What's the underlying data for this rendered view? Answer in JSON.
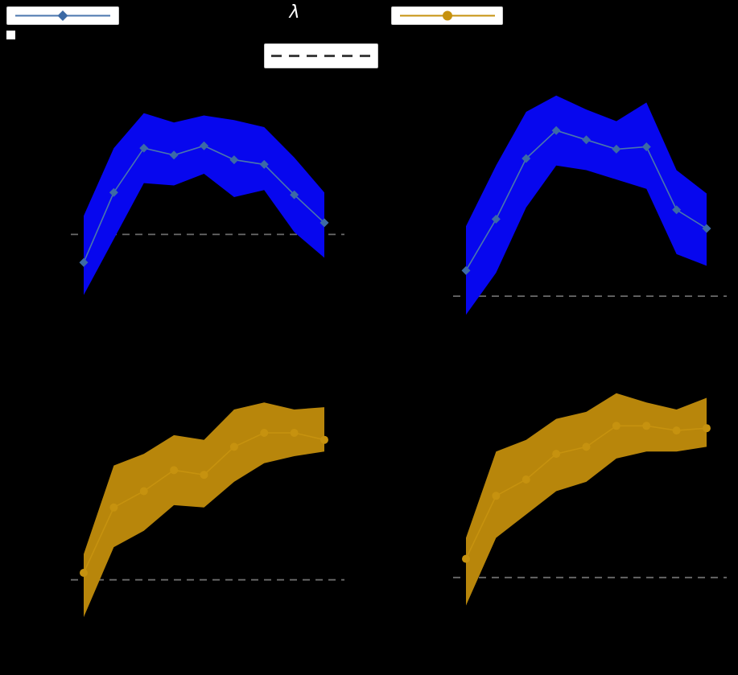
{
  "figure": {
    "background": "#000000",
    "lambda_label": "λ"
  },
  "legend": [
    {
      "id": "series-blue",
      "style": "solid",
      "marker": "diamond",
      "line_color": "#4a76ad",
      "marker_color": "#3c6aa5"
    },
    {
      "id": "series-dashed",
      "style": "dashed",
      "marker": "none",
      "line_color": "#3e3e3e",
      "marker_color": ""
    },
    {
      "id": "series-gold",
      "style": "solid",
      "marker": "circle",
      "line_color": "#c6920f",
      "marker_color": "#c6920f"
    }
  ],
  "chart_data": [
    {
      "id": "top-left",
      "type": "line",
      "x_label": "λ",
      "x": [
        1,
        2,
        3,
        4,
        5,
        6,
        7,
        8,
        9
      ],
      "line": [
        0.22,
        0.52,
        0.71,
        0.68,
        0.72,
        0.66,
        0.64,
        0.51,
        0.39
      ],
      "band_upper": [
        0.42,
        0.71,
        0.86,
        0.82,
        0.85,
        0.83,
        0.8,
        0.67,
        0.52
      ],
      "band_lower": [
        0.08,
        0.32,
        0.56,
        0.55,
        0.6,
        0.5,
        0.53,
        0.35,
        0.24
      ],
      "baseline": 0.34,
      "marker": "diamond",
      "band_color": "#0707ee",
      "line_color": "#4a76ad",
      "marker_color": "#3c6aa5",
      "baseline_color": "#6b6b6b",
      "ylim": [
        0,
        1
      ],
      "grid": false
    },
    {
      "id": "top-right",
      "type": "line",
      "x_label": "λ",
      "x": [
        1,
        2,
        3,
        4,
        5,
        6,
        7,
        8,
        9
      ],
      "line": [
        0.22,
        0.44,
        0.7,
        0.82,
        0.78,
        0.74,
        0.75,
        0.48,
        0.4
      ],
      "band_upper": [
        0.41,
        0.67,
        0.9,
        0.97,
        0.91,
        0.86,
        0.94,
        0.65,
        0.55
      ],
      "band_lower": [
        0.03,
        0.21,
        0.49,
        0.67,
        0.65,
        0.61,
        0.57,
        0.29,
        0.24
      ],
      "baseline": 0.11,
      "marker": "diamond",
      "band_color": "#0707ee",
      "line_color": "#4a76ad",
      "marker_color": "#3c6aa5",
      "baseline_color": "#6b6b6b",
      "ylim": [
        0,
        1
      ],
      "grid": false
    },
    {
      "id": "bottom-left",
      "type": "line",
      "x_label": "λ",
      "x": [
        1,
        2,
        3,
        4,
        5,
        6,
        7,
        8,
        9
      ],
      "line": [
        0.2,
        0.48,
        0.55,
        0.64,
        0.62,
        0.74,
        0.8,
        0.8,
        0.77
      ],
      "band_upper": [
        0.28,
        0.66,
        0.71,
        0.79,
        0.77,
        0.9,
        0.93,
        0.9,
        0.91
      ],
      "band_lower": [
        0.01,
        0.31,
        0.38,
        0.49,
        0.48,
        0.59,
        0.67,
        0.7,
        0.72
      ],
      "baseline": 0.17,
      "marker": "circle",
      "band_color": "#b8860b",
      "line_color": "#c6920f",
      "marker_color": "#c6920f",
      "baseline_color": "#6b6b6b",
      "ylim": [
        0,
        1
      ],
      "grid": false
    },
    {
      "id": "bottom-right",
      "type": "line",
      "x_label": "λ",
      "x": [
        1,
        2,
        3,
        4,
        5,
        6,
        7,
        8,
        9
      ],
      "line": [
        0.26,
        0.53,
        0.6,
        0.71,
        0.74,
        0.83,
        0.83,
        0.81,
        0.82
      ],
      "band_upper": [
        0.35,
        0.72,
        0.77,
        0.86,
        0.89,
        0.97,
        0.93,
        0.9,
        0.95
      ],
      "band_lower": [
        0.06,
        0.35,
        0.45,
        0.55,
        0.59,
        0.69,
        0.72,
        0.72,
        0.74
      ],
      "baseline": 0.18,
      "marker": "circle",
      "band_color": "#b8860b",
      "line_color": "#c6920f",
      "marker_color": "#c6920f",
      "baseline_color": "#6b6b6b",
      "ylim": [
        0,
        1
      ],
      "grid": false
    }
  ]
}
